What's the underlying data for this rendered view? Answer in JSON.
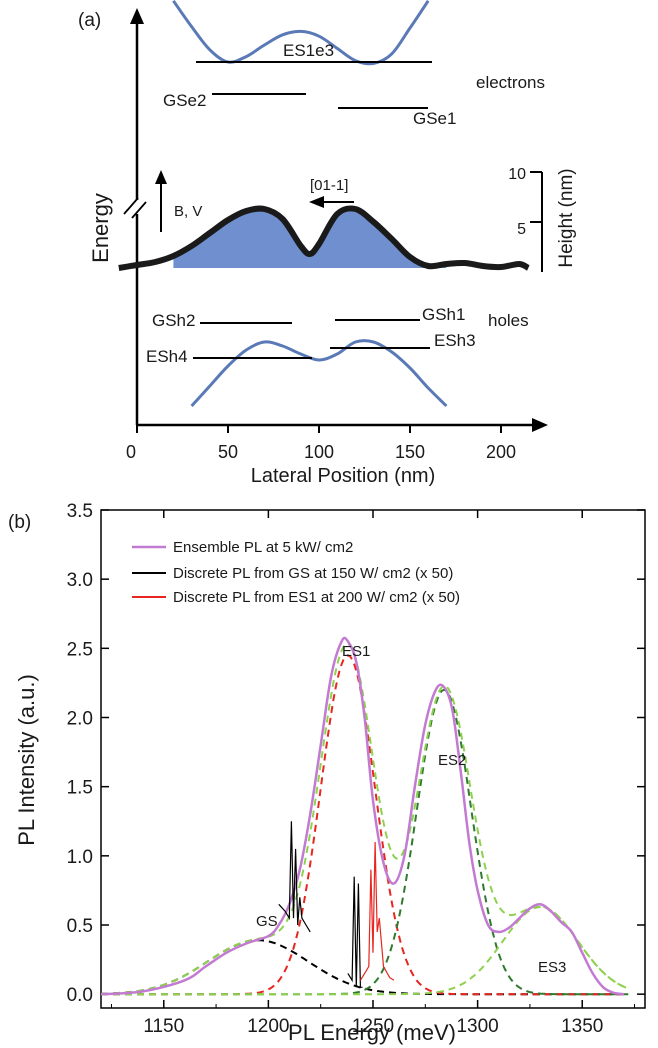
{
  "chart_data": [
    {
      "type": "line",
      "panel_label": "(a)",
      "xlabel": "Lateral Position (nm)",
      "ylabel": "Energy",
      "xlim": [
        0,
        215
      ],
      "x_ticks": [
        0,
        50,
        100,
        150,
        200
      ],
      "right_axis": {
        "label": "Height (nm)",
        "ticks": [
          5,
          10
        ]
      },
      "field_label": "B, V",
      "direction_label": "[01-1]",
      "band_labels": {
        "electrons": "electrons",
        "holes": "holes"
      },
      "levels": [
        "ES1e3",
        "GSe2",
        "GSe1",
        "GSh2",
        "GSh1",
        "ESh4",
        "ESh3"
      ],
      "series": [
        {
          "name": "electrons",
          "x": [
            20,
            30,
            40,
            50,
            60,
            70,
            80,
            90,
            100,
            110,
            120,
            130,
            140,
            150,
            160
          ],
          "y": [
            190,
            152,
            118,
            100,
            108,
            125,
            140,
            145,
            138,
            120,
            102,
            98,
            112,
            150,
            190
          ]
        },
        {
          "name": "height",
          "x": [
            -10,
            0,
            10,
            20,
            30,
            40,
            50,
            60,
            70,
            80,
            90,
            95,
            100,
            110,
            120,
            130,
            140,
            150,
            160,
            170,
            180,
            190,
            200,
            210,
            215
          ],
          "y": [
            0.0,
            0.3,
            0.6,
            1.2,
            2.2,
            3.5,
            4.8,
            5.7,
            5.9,
            4.9,
            2.2,
            1.4,
            2.4,
            5.4,
            5.9,
            4.6,
            2.9,
            1.1,
            0.2,
            0.4,
            0.5,
            0.2,
            0.1,
            0.4,
            0.0
          ]
        },
        {
          "name": "holes",
          "x": [
            30,
            40,
            50,
            60,
            70,
            80,
            90,
            100,
            110,
            120,
            130,
            140,
            150,
            160,
            170
          ],
          "y": [
            -190,
            -140,
            -90,
            -50,
            -30,
            -40,
            -60,
            -75,
            -60,
            -30,
            -30,
            -55,
            -95,
            -145,
            -190
          ]
        }
      ]
    },
    {
      "type": "line",
      "panel_label": "(b)",
      "xlabel": "PL Energy (meV)",
      "ylabel": "PL Intensity (a.u.)",
      "xlim": [
        1120,
        1380
      ],
      "ylim": [
        -0.1,
        3.5
      ],
      "x_ticks": [
        1150,
        1200,
        1250,
        1300,
        1350
      ],
      "y_ticks": [
        0.0,
        0.5,
        1.0,
        1.5,
        2.0,
        2.5,
        3.0,
        3.5
      ],
      "legend_position": "top-left",
      "colors": {
        "ensemble": "#c27bd1",
        "gs": "#000000",
        "es1": "#e6261f",
        "fit_gs": "#000000",
        "fit_es1": "#e6261f",
        "fit_es": "#2f7a2f",
        "fit_sum": "#8fd14f"
      },
      "series": [
        {
          "name": "Ensemble PL at 5 kW/ cm2",
          "x": [
            1120,
            1140,
            1160,
            1170,
            1180,
            1190,
            1200,
            1205,
            1210,
            1215,
            1220,
            1225,
            1230,
            1235,
            1238,
            1242,
            1246,
            1250,
            1255,
            1260,
            1265,
            1270,
            1275,
            1280,
            1284,
            1288,
            1292,
            1296,
            1300,
            1305,
            1310,
            1315,
            1320,
            1325,
            1330,
            1335,
            1340,
            1345,
            1350,
            1355,
            1360,
            1365,
            1370
          ],
          "y": [
            0.0,
            0.02,
            0.1,
            0.2,
            0.3,
            0.37,
            0.42,
            0.5,
            0.65,
            0.9,
            1.3,
            1.8,
            2.3,
            2.55,
            2.55,
            2.4,
            2.0,
            1.4,
            0.95,
            0.8,
            1.0,
            1.5,
            1.95,
            2.2,
            2.22,
            2.05,
            1.6,
            1.1,
            0.75,
            0.5,
            0.45,
            0.48,
            0.55,
            0.62,
            0.65,
            0.6,
            0.52,
            0.45,
            0.3,
            0.15,
            0.05,
            0.01,
            0.0
          ]
        },
        {
          "name": "Discrete PL from GS at 150 W/ cm2 (x 50)",
          "x": [
            1205,
            1208,
            1210,
            1211,
            1212,
            1213,
            1214,
            1215,
            1216,
            1218,
            1220
          ],
          "y": [
            0.65,
            0.6,
            0.55,
            1.25,
            0.55,
            1.05,
            0.5,
            0.7,
            0.55,
            0.5,
            0.45
          ],
          "x2": [
            1238,
            1240,
            1241,
            1242,
            1243,
            1244,
            1245
          ],
          "y2": [
            0.15,
            0.1,
            0.85,
            0.05,
            0.8,
            0.05,
            0.05
          ]
        },
        {
          "name": "Discrete PL from ES1 at 200 W/ cm2 (x 50)",
          "x": [
            1244,
            1246,
            1248,
            1249,
            1250,
            1251,
            1252,
            1253,
            1255,
            1258,
            1260
          ],
          "y": [
            0.1,
            0.15,
            0.2,
            0.9,
            0.3,
            1.1,
            0.45,
            0.55,
            0.2,
            0.12,
            0.1
          ]
        }
      ],
      "fits": [
        {
          "name": "GS",
          "center": 1195,
          "amplitude": 0.39,
          "sigma": 24,
          "color": "#000000"
        },
        {
          "name": "ES1",
          "center": 1238,
          "amplitude": 2.45,
          "sigma": 13,
          "color": "#e6261f"
        },
        {
          "name": "ES2",
          "center": 1284,
          "amplitude": 2.2,
          "sigma": 13,
          "color": "#2f7a2f"
        },
        {
          "name": "ES3",
          "center": 1330,
          "amplitude": 0.63,
          "sigma": 18,
          "color": "#8fd14f"
        }
      ],
      "peak_labels": [
        "GS",
        "ES1",
        "ES2",
        "ES3"
      ]
    }
  ]
}
